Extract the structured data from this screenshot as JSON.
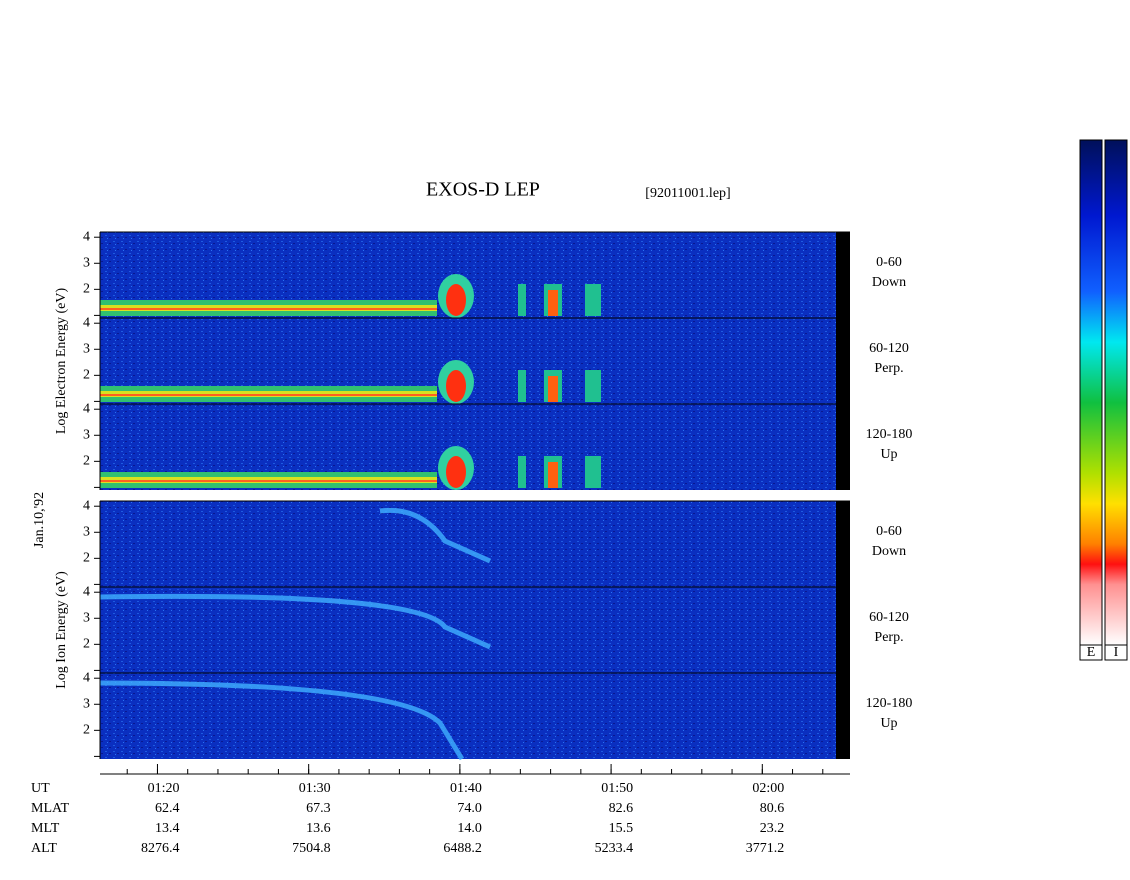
{
  "chart_data": {
    "type": "spectrogram",
    "title": "EXOS-D LEP",
    "file": "[92011001.lep]",
    "date": "Jan.10,'92",
    "xlim": [
      76.2,
      125.8
    ],
    "xticks": [
      {
        "value": 80,
        "label": "01:20"
      },
      {
        "value": 90,
        "label": "01:30"
      },
      {
        "value": 100,
        "label": "01:40"
      },
      {
        "value": 110,
        "label": "01:50"
      },
      {
        "value": 120,
        "label": "02:00"
      }
    ],
    "groups": [
      {
        "ylabel": "Log Electron Energy (eV)",
        "ylim": [
          0.9,
          4.2
        ],
        "yticks": [
          2,
          3,
          4
        ],
        "panels": [
          {
            "angle": "0-60",
            "direction": "Down"
          },
          {
            "angle": "60-120",
            "direction": "Perp."
          },
          {
            "angle": "120-180",
            "direction": "Up"
          }
        ]
      },
      {
        "ylabel": "Log Ion Energy (eV)",
        "ylim": [
          0.9,
          4.2
        ],
        "yticks": [
          2,
          3,
          4
        ],
        "panels": [
          {
            "angle": "0-60",
            "direction": "Down"
          },
          {
            "angle": "60-120",
            "direction": "Perp."
          },
          {
            "angle": "120-180",
            "direction": "Up"
          }
        ]
      }
    ],
    "colorbar_labels": [
      "E",
      "I"
    ],
    "ephemeris": {
      "ut_label": "UT",
      "rows": [
        {
          "label": "MLAT",
          "values": [
            "62.4",
            "67.3",
            "74.0",
            "82.6",
            "80.6"
          ]
        },
        {
          "label": "MLT",
          "values": [
            "13.4",
            "13.6",
            "14.0",
            "15.5",
            "23.2"
          ]
        },
        {
          "label": "ALT",
          "values": [
            "8276.4",
            "7504.8",
            "6488.2",
            "5233.4",
            "3771.2"
          ]
        }
      ]
    }
  }
}
